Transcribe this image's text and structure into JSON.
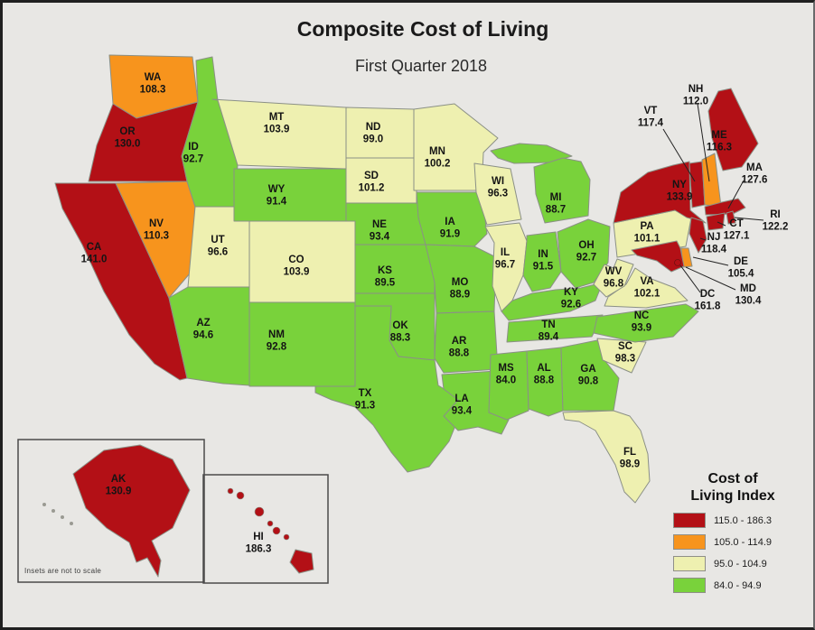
{
  "title": "Composite Cost of Living",
  "subtitle": "First Quarter 2018",
  "inset_note": "Insets are not to scale",
  "legend": {
    "title_line1": "Cost of",
    "title_line2": "Living Index",
    "buckets": [
      {
        "label": "115.0 - 186.3",
        "color": "#b31016",
        "min": 115.0
      },
      {
        "label": "105.0 - 114.9",
        "color": "#f7941d",
        "min": 105.0
      },
      {
        "label": "95.0 - 104.9",
        "color": "#eef0b0",
        "min": 95.0
      },
      {
        "label": "84.0 - 94.9",
        "color": "#79d23b",
        "min": 84.0
      }
    ]
  },
  "map_colors": {
    "background": "#e8e7e4",
    "state_border": "#8b9086",
    "callout_line": "#222222",
    "inset_box_border": "#4a4a4a"
  },
  "states": [
    {
      "abbr": "WA",
      "value": "108.3"
    },
    {
      "abbr": "OR",
      "value": "130.0"
    },
    {
      "abbr": "CA",
      "value": "141.0"
    },
    {
      "abbr": "NV",
      "value": "110.3"
    },
    {
      "abbr": "ID",
      "value": "92.7"
    },
    {
      "abbr": "MT",
      "value": "103.9"
    },
    {
      "abbr": "WY",
      "value": "91.4"
    },
    {
      "abbr": "UT",
      "value": "96.6"
    },
    {
      "abbr": "CO",
      "value": "103.9"
    },
    {
      "abbr": "AZ",
      "value": "94.6"
    },
    {
      "abbr": "NM",
      "value": "92.8"
    },
    {
      "abbr": "ND",
      "value": "99.0"
    },
    {
      "abbr": "SD",
      "value": "101.2"
    },
    {
      "abbr": "NE",
      "value": "93.4"
    },
    {
      "abbr": "KS",
      "value": "89.5"
    },
    {
      "abbr": "OK",
      "value": "88.3"
    },
    {
      "abbr": "TX",
      "value": "91.3"
    },
    {
      "abbr": "MN",
      "value": "100.2"
    },
    {
      "abbr": "IA",
      "value": "91.9"
    },
    {
      "abbr": "MO",
      "value": "88.9"
    },
    {
      "abbr": "AR",
      "value": "88.8"
    },
    {
      "abbr": "LA",
      "value": "93.4"
    },
    {
      "abbr": "WI",
      "value": "96.3"
    },
    {
      "abbr": "IL",
      "value": "96.7"
    },
    {
      "abbr": "MI",
      "value": "88.7"
    },
    {
      "abbr": "IN",
      "value": "91.5"
    },
    {
      "abbr": "OH",
      "value": "92.7"
    },
    {
      "abbr": "KY",
      "value": "92.6"
    },
    {
      "abbr": "TN",
      "value": "89.4"
    },
    {
      "abbr": "MS",
      "value": "84.0"
    },
    {
      "abbr": "AL",
      "value": "88.8"
    },
    {
      "abbr": "GA",
      "value": "90.8"
    },
    {
      "abbr": "FL",
      "value": "98.9"
    },
    {
      "abbr": "SC",
      "value": "98.3"
    },
    {
      "abbr": "NC",
      "value": "93.9"
    },
    {
      "abbr": "VA",
      "value": "102.1"
    },
    {
      "abbr": "WV",
      "value": "96.8"
    },
    {
      "abbr": "PA",
      "value": "101.1"
    },
    {
      "abbr": "NY",
      "value": "133.9"
    },
    {
      "abbr": "VT",
      "value": "117.4"
    },
    {
      "abbr": "NH",
      "value": "112.0"
    },
    {
      "abbr": "ME",
      "value": "116.3"
    },
    {
      "abbr": "MA",
      "value": "127.6"
    },
    {
      "abbr": "RI",
      "value": "122.2"
    },
    {
      "abbr": "CT",
      "value": "127.1"
    },
    {
      "abbr": "NJ",
      "value": "118.4"
    },
    {
      "abbr": "DE",
      "value": "105.4"
    },
    {
      "abbr": "MD",
      "value": "130.4"
    },
    {
      "abbr": "DC",
      "value": "161.8"
    },
    {
      "abbr": "AK",
      "value": "130.9"
    },
    {
      "abbr": "HI",
      "value": "186.3"
    }
  ]
}
